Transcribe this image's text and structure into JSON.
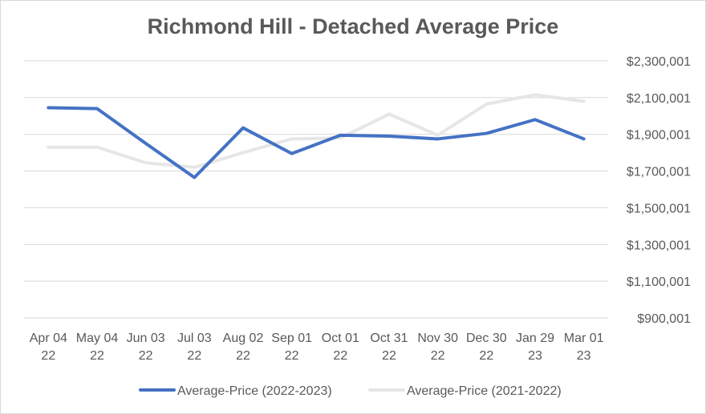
{
  "chart_data": {
    "type": "line",
    "title": "Richmond Hill - Detached Average Price",
    "categories": [
      [
        "Apr 04",
        "22"
      ],
      [
        "May 04",
        "22"
      ],
      [
        "Jun 03",
        "22"
      ],
      [
        "Jul 03",
        "22"
      ],
      [
        "Aug 02",
        "22"
      ],
      [
        "Sep 01",
        "22"
      ],
      [
        "Oct 01",
        "22"
      ],
      [
        "Oct 31",
        "22"
      ],
      [
        "Nov 30",
        "22"
      ],
      [
        "Dec 30",
        "22"
      ],
      [
        "Jan 29",
        "23"
      ],
      [
        "Mar 01",
        "23"
      ]
    ],
    "series": [
      {
        "name": "Average-Price (2022-2023)",
        "color": "#4472c4",
        "values": [
          2045000,
          2040000,
          1850000,
          1665000,
          1935000,
          1795000,
          1895000,
          1890000,
          1875000,
          1905000,
          1980000,
          1875000
        ]
      },
      {
        "name": "Average-Price (2021-2022)",
        "color": "#e7e6e6",
        "values": [
          1830000,
          1830000,
          1745000,
          1720000,
          1800000,
          1875000,
          1880000,
          2010000,
          1895000,
          2065000,
          2115000,
          2080000
        ]
      }
    ],
    "y_ticks": [
      "$2,300,001",
      "$2,100,001",
      "$1,900,001",
      "$1,700,001",
      "$1,500,001",
      "$1,300,001",
      "$1,100,001",
      "$900,001"
    ],
    "ylim": [
      900001,
      2300001
    ],
    "y_step": 200000,
    "grid": true,
    "legend_position": "bottom"
  }
}
